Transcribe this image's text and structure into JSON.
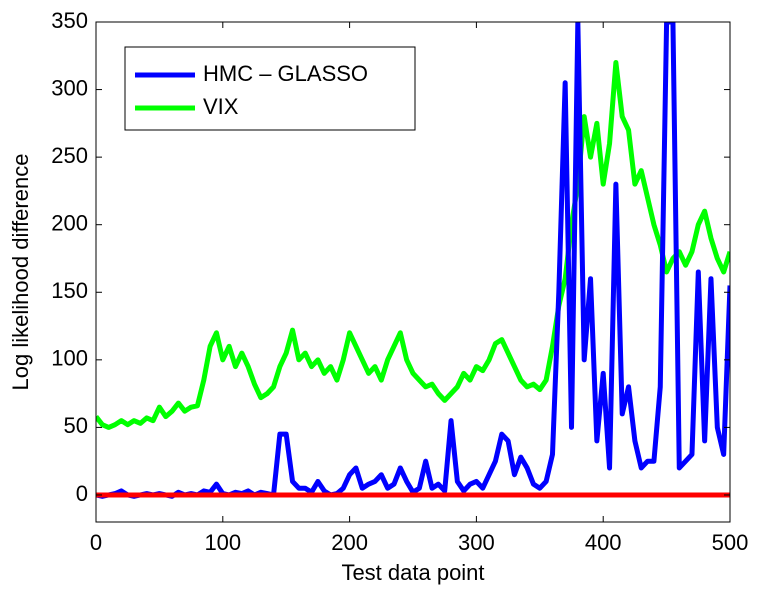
{
  "chart_data": {
    "type": "line",
    "x_label": "Test data point",
    "y_label": "Log likelihood difference",
    "xlim": [
      0,
      500
    ],
    "ylim": [
      -20,
      350
    ],
    "xticks": [
      0,
      100,
      200,
      300,
      400,
      500
    ],
    "yticks": [
      0,
      50,
      100,
      150,
      200,
      250,
      300,
      350
    ],
    "legend": "upper left",
    "x": [
      0,
      5,
      10,
      15,
      20,
      25,
      30,
      35,
      40,
      45,
      50,
      55,
      60,
      65,
      70,
      75,
      80,
      85,
      90,
      95,
      100,
      105,
      110,
      115,
      120,
      125,
      130,
      135,
      140,
      145,
      150,
      155,
      160,
      165,
      170,
      175,
      180,
      185,
      190,
      195,
      200,
      205,
      210,
      215,
      220,
      225,
      230,
      235,
      240,
      245,
      250,
      255,
      260,
      265,
      270,
      275,
      280,
      285,
      290,
      295,
      300,
      305,
      310,
      315,
      320,
      325,
      330,
      335,
      340,
      345,
      350,
      355,
      360,
      365,
      370,
      375,
      380,
      385,
      390,
      395,
      400,
      405,
      410,
      415,
      420,
      425,
      430,
      435,
      440,
      445,
      450,
      455,
      460,
      465,
      470,
      475,
      480,
      485,
      490,
      495,
      500
    ],
    "series": [
      {
        "name": "VIX",
        "color": "#00ff00",
        "values": [
          58,
          52,
          50,
          52,
          55,
          52,
          55,
          53,
          57,
          55,
          65,
          58,
          62,
          68,
          62,
          65,
          66,
          85,
          110,
          120,
          100,
          110,
          95,
          105,
          95,
          82,
          72,
          75,
          80,
          95,
          105,
          122,
          100,
          105,
          95,
          100,
          90,
          95,
          85,
          100,
          120,
          110,
          100,
          90,
          95,
          85,
          100,
          110,
          120,
          100,
          90,
          85,
          80,
          82,
          75,
          70,
          75,
          80,
          90,
          85,
          95,
          92,
          100,
          112,
          115,
          105,
          95,
          85,
          80,
          82,
          78,
          85,
          110,
          140,
          160,
          200,
          230,
          280,
          250,
          275,
          230,
          260,
          320,
          280,
          270,
          230,
          240,
          220,
          200,
          185,
          165,
          175,
          180,
          170,
          180,
          200,
          210,
          190,
          175,
          165,
          180
        ]
      },
      {
        "name": "HMC – GLASSO",
        "color": "#0000ff",
        "values": [
          0,
          -1,
          0,
          1,
          3,
          0,
          -1,
          0,
          1,
          0,
          1,
          0,
          -1,
          2,
          0,
          1,
          0,
          3,
          2,
          8,
          1,
          0,
          2,
          1,
          3,
          0,
          2,
          1,
          0,
          45,
          45,
          10,
          5,
          5,
          2,
          10,
          3,
          0,
          1,
          5,
          15,
          20,
          5,
          8,
          10,
          15,
          5,
          8,
          20,
          10,
          2,
          5,
          25,
          5,
          8,
          3,
          55,
          10,
          3,
          8,
          10,
          5,
          15,
          25,
          45,
          40,
          15,
          28,
          20,
          8,
          5,
          10,
          30,
          150,
          305,
          50,
          350,
          100,
          160,
          40,
          90,
          20,
          230,
          60,
          80,
          40,
          20,
          25,
          25,
          80,
          350,
          350,
          20,
          25,
          30,
          165,
          40,
          160,
          50,
          30,
          155
        ]
      },
      {
        "color": "#ff0000",
        "x": [
          0,
          500
        ],
        "values": [
          0,
          0
        ]
      }
    ]
  }
}
